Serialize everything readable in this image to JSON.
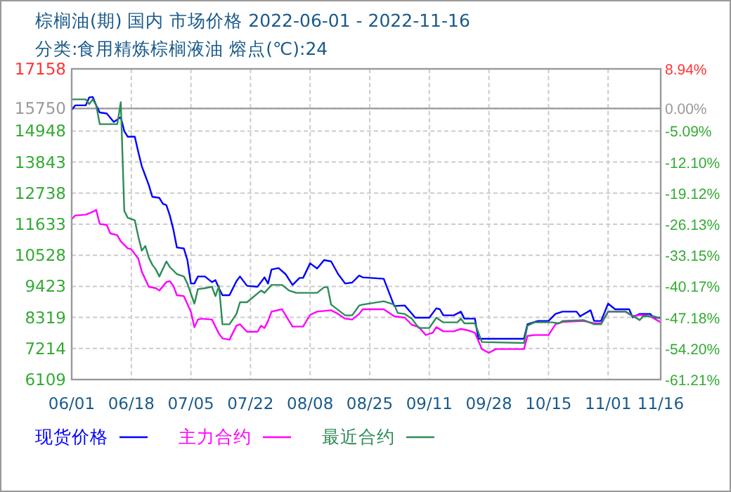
{
  "chart_data": {
    "type": "line",
    "title": "棕榈油(期) 国内 市场价格 2022-06-01 - 2022-11-16",
    "subtitle": "分类:食用精炼棕榈液油 熔点(℃):24",
    "xlim": [
      "2022-06-01",
      "2022-11-16"
    ],
    "xticks": [
      {
        "value": "2022-06-01",
        "label": "06/01"
      },
      {
        "value": "2022-06-18",
        "label": "06/18"
      },
      {
        "value": "2022-07-05",
        "label": "07/05"
      },
      {
        "value": "2022-07-22",
        "label": "07/22"
      },
      {
        "value": "2022-08-08",
        "label": "08/08"
      },
      {
        "value": "2022-08-25",
        "label": "08/25"
      },
      {
        "value": "2022-09-11",
        "label": "09/11"
      },
      {
        "value": "2022-09-28",
        "label": "09/28"
      },
      {
        "value": "2022-10-15",
        "label": "10/15"
      },
      {
        "value": "2022-11-01",
        "label": "11/01"
      },
      {
        "value": "2022-11-16",
        "label": "11/16"
      }
    ],
    "ylim": [
      6109,
      17158
    ],
    "yticks": [
      6109,
      7214,
      8319,
      9423,
      10528,
      11633,
      12738,
      13843,
      14948,
      15750,
      17158
    ],
    "y2lim": [
      -61.21,
      8.94
    ],
    "y2ticks": [
      {
        "value": -61.21,
        "label": "-61.21%"
      },
      {
        "value": -54.2,
        "label": "-54.20%"
      },
      {
        "value": -47.18,
        "label": "-47.18%"
      },
      {
        "value": -40.17,
        "label": "-40.17%"
      },
      {
        "value": -33.15,
        "label": "-33.15%"
      },
      {
        "value": -26.13,
        "label": "-26.13%"
      },
      {
        "value": -19.12,
        "label": "-19.12%"
      },
      {
        "value": -12.1,
        "label": "-12.10%"
      },
      {
        "value": -5.09,
        "label": "-5.09%"
      },
      {
        "value": 0,
        "label": "0.00%"
      },
      {
        "value": 8.94,
        "label": "8.94%"
      }
    ],
    "ref_lines": [
      {
        "axis": "y",
        "value": 15750,
        "color": "#999999"
      }
    ],
    "grid": true,
    "legend": "bottom",
    "line_style": "solid",
    "series": [
      {
        "name": "现货价格",
        "color": "#0000ff",
        "x": [
          "2022-06-01",
          "2022-06-02",
          "2022-06-05",
          "2022-06-06",
          "2022-06-07",
          "2022-06-08",
          "2022-06-09",
          "2022-06-11",
          "2022-06-13",
          "2022-06-15",
          "2022-06-16",
          "2022-06-17",
          "2022-06-19",
          "2022-06-20",
          "2022-06-21",
          "2022-06-22",
          "2022-06-23",
          "2022-06-24",
          "2022-06-26",
          "2022-06-27",
          "2022-06-28",
          "2022-06-29",
          "2022-06-30",
          "2022-07-01",
          "2022-07-03",
          "2022-07-04",
          "2022-07-05",
          "2022-07-06",
          "2022-07-07",
          "2022-07-09",
          "2022-07-11",
          "2022-07-12",
          "2022-07-13",
          "2022-07-14",
          "2022-07-16",
          "2022-07-18",
          "2022-07-19",
          "2022-07-21",
          "2022-07-24",
          "2022-07-26",
          "2022-07-27",
          "2022-07-28",
          "2022-07-30",
          "2022-08-01",
          "2022-08-03",
          "2022-08-05",
          "2022-08-06",
          "2022-08-08",
          "2022-08-10",
          "2022-08-12",
          "2022-08-14",
          "2022-08-16",
          "2022-08-18",
          "2022-08-20",
          "2022-08-22",
          "2022-08-23",
          "2022-08-29",
          "2022-09-01",
          "2022-09-04",
          "2022-09-07",
          "2022-09-11",
          "2022-09-13",
          "2022-09-14",
          "2022-09-15",
          "2022-09-18",
          "2022-09-20",
          "2022-09-21",
          "2022-09-24",
          "2022-09-25",
          "2022-10-08",
          "2022-10-09",
          "2022-10-12",
          "2022-10-15",
          "2022-10-17",
          "2022-10-19",
          "2022-10-23",
          "2022-10-24",
          "2022-10-27",
          "2022-10-28",
          "2022-10-30",
          "2022-11-01",
          "2022-11-03",
          "2022-11-07",
          "2022-11-08",
          "2022-11-10",
          "2022-11-13",
          "2022-11-14",
          "2022-11-16"
        ],
        "values": [
          15700,
          15860,
          15860,
          16143,
          16160,
          15860,
          15609,
          15570,
          15270,
          15440,
          14944,
          14744,
          14744,
          14194,
          13694,
          13359,
          13024,
          12609,
          12570,
          12359,
          12309,
          11943,
          11443,
          10809,
          10770,
          10359,
          9524,
          9524,
          9774,
          9774,
          9574,
          9643,
          9359,
          9109,
          9109,
          9609,
          9774,
          9443,
          9409,
          9743,
          9524,
          10024,
          10074,
          9859,
          9474,
          9724,
          9724,
          10243,
          10059,
          10359,
          10309,
          9859,
          9524,
          9559,
          9809,
          9743,
          9693,
          8724,
          8743,
          8309,
          8309,
          8643,
          8609,
          8394,
          8394,
          8524,
          8274,
          8274,
          7559,
          7559,
          8074,
          8193,
          8193,
          8443,
          8524,
          8524,
          8359,
          8574,
          8194,
          8194,
          8809,
          8609,
          8609,
          8324,
          8443,
          8443,
          8309,
          8309
        ]
      },
      {
        "name": "主力合约",
        "color": "#ff00ff",
        "x": [
          "2022-06-01",
          "2022-06-02",
          "2022-06-05",
          "2022-06-07",
          "2022-06-08",
          "2022-06-09",
          "2022-06-11",
          "2022-06-12",
          "2022-06-14",
          "2022-06-15",
          "2022-06-17",
          "2022-06-18",
          "2022-06-20",
          "2022-06-21",
          "2022-06-23",
          "2022-06-25",
          "2022-06-26",
          "2022-06-28",
          "2022-06-29",
          "2022-06-30",
          "2022-07-01",
          "2022-07-03",
          "2022-07-05",
          "2022-07-06",
          "2022-07-07",
          "2022-07-08",
          "2022-07-11",
          "2022-07-13",
          "2022-07-14",
          "2022-07-16",
          "2022-07-18",
          "2022-07-19",
          "2022-07-21",
          "2022-07-24",
          "2022-07-25",
          "2022-07-26",
          "2022-07-27",
          "2022-07-28",
          "2022-07-31",
          "2022-08-02",
          "2022-08-03",
          "2022-08-06",
          "2022-08-08",
          "2022-08-10",
          "2022-08-14",
          "2022-08-16",
          "2022-08-18",
          "2022-08-20",
          "2022-08-22",
          "2022-08-23",
          "2022-08-29",
          "2022-09-01",
          "2022-09-04",
          "2022-09-06",
          "2022-09-08",
          "2022-09-10",
          "2022-09-12",
          "2022-09-13",
          "2022-09-15",
          "2022-09-18",
          "2022-09-20",
          "2022-09-22",
          "2022-09-24",
          "2022-09-26",
          "2022-09-28",
          "2022-09-30",
          "2022-10-08",
          "2022-10-09",
          "2022-10-11",
          "2022-10-15",
          "2022-10-17",
          "2022-10-19",
          "2022-10-25",
          "2022-10-28",
          "2022-10-30",
          "2022-11-01",
          "2022-11-06",
          "2022-11-08",
          "2022-11-10",
          "2022-11-13",
          "2022-11-16"
        ],
        "values": [
          11809,
          11943,
          11974,
          12074,
          12143,
          11643,
          11609,
          11309,
          11243,
          11024,
          10774,
          10743,
          10409,
          9943,
          9409,
          9359,
          9274,
          9574,
          9609,
          9443,
          9109,
          9074,
          8524,
          7974,
          8243,
          8274,
          8243,
          7743,
          7574,
          7524,
          8024,
          8074,
          7809,
          7809,
          8024,
          7943,
          8193,
          8524,
          8609,
          8193,
          7993,
          7993,
          8409,
          8524,
          8574,
          8443,
          8274,
          8243,
          8443,
          8609,
          8609,
          8359,
          8309,
          8059,
          7974,
          7693,
          7774,
          7974,
          7824,
          7824,
          7909,
          7859,
          7774,
          7193,
          7059,
          7193,
          7193,
          7659,
          7693,
          7693,
          8074,
          8159,
          8193,
          8109,
          8109,
          8524,
          8524,
          8359,
          8409,
          8359,
          8143
        ]
      },
      {
        "name": "最近合约",
        "color": "#2e8b57",
        "x": [
          "2022-06-01",
          "2022-06-05",
          "2022-06-06",
          "2022-06-07",
          "2022-06-08",
          "2022-06-09",
          "2022-06-14",
          "2022-06-15",
          "2022-06-16",
          "2022-06-17",
          "2022-06-19",
          "2022-06-20",
          "2022-06-21",
          "2022-06-22",
          "2022-06-23",
          "2022-06-24",
          "2022-06-25",
          "2022-06-26",
          "2022-06-28",
          "2022-06-29",
          "2022-07-01",
          "2022-07-03",
          "2022-07-04",
          "2022-07-06",
          "2022-07-07",
          "2022-07-09",
          "2022-07-11",
          "2022-07-12",
          "2022-07-13",
          "2022-07-14",
          "2022-07-16",
          "2022-07-18",
          "2022-07-19",
          "2022-07-21",
          "2022-07-25",
          "2022-07-26",
          "2022-07-28",
          "2022-07-31",
          "2022-08-02",
          "2022-08-04",
          "2022-08-10",
          "2022-08-12",
          "2022-08-13",
          "2022-08-14",
          "2022-08-18",
          "2022-08-20",
          "2022-08-22",
          "2022-08-23",
          "2022-08-29",
          "2022-09-01",
          "2022-09-02",
          "2022-09-04",
          "2022-09-06",
          "2022-09-08",
          "2022-09-11",
          "2022-09-13",
          "2022-09-15",
          "2022-09-19",
          "2022-09-20",
          "2022-09-21",
          "2022-09-24",
          "2022-09-26",
          "2022-10-08",
          "2022-10-09",
          "2022-10-11",
          "2022-10-16",
          "2022-10-18",
          "2022-10-19",
          "2022-10-25",
          "2022-10-28",
          "2022-10-30",
          "2022-11-01",
          "2022-11-06",
          "2022-11-10",
          "2022-11-11",
          "2022-11-14",
          "2022-11-16"
        ],
        "values": [
          16074,
          16074,
          15909,
          16074,
          15859,
          15193,
          15193,
          15974,
          12109,
          11859,
          11774,
          11193,
          10693,
          10859,
          10443,
          10193,
          10024,
          9774,
          10309,
          10109,
          9859,
          9774,
          9524,
          8809,
          9324,
          9359,
          9409,
          9074,
          9443,
          8074,
          8074,
          8443,
          8859,
          8859,
          9274,
          9193,
          9474,
          9474,
          9274,
          9193,
          9193,
          9393,
          9393,
          8774,
          8394,
          8394,
          8743,
          8774,
          8893,
          8774,
          8474,
          8443,
          8274,
          7943,
          7943,
          8309,
          8143,
          8143,
          8274,
          8109,
          8109,
          7443,
          7409,
          8024,
          8143,
          8143,
          8109,
          8193,
          8224,
          8074,
          8074,
          8524,
          8524,
          8224,
          8359,
          8359,
          8274
        ]
      }
    ]
  }
}
